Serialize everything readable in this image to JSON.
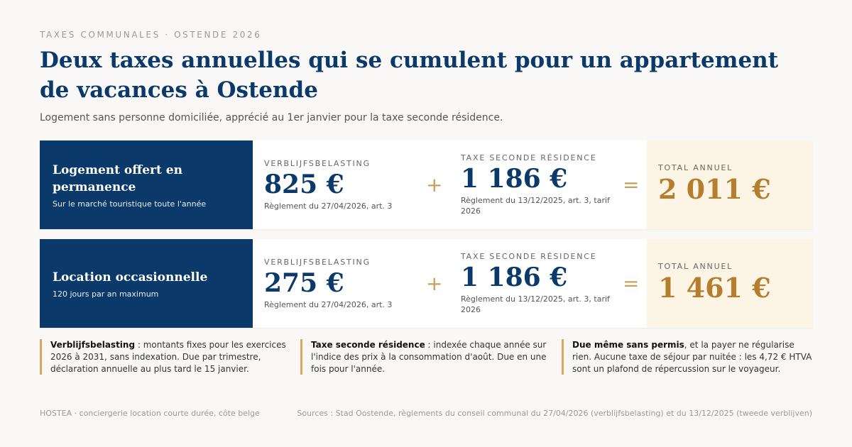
{
  "header": {
    "eyebrow": "TAXES COMMUNALES · OSTENDE 2026",
    "title": "Deux taxes annuelles qui se cumulent pour un appartement de vacances à Ostende",
    "subtitle": "Logement sans personne domiciliée, apprécié au 1er janvier pour la taxe seconde résidence."
  },
  "rows": [
    {
      "name": "Logement offert en permanence",
      "desc": "Sur le marché touristique toute l'année",
      "tax1_label": "VERBLIJFSBELASTING",
      "tax1_amount": "825 €",
      "tax1_ref": "Règlement du 27/04/2026, art. 3",
      "plus": "+",
      "tax2_label": "TAXE SECONDE RÉSIDENCE",
      "tax2_amount": "1 186 €",
      "tax2_ref": "Règlement du 13/12/2025, art. 3, tarif 2026",
      "equals": "=",
      "total_label": "TOTAL ANNUEL",
      "total_amount": "2 011 €"
    },
    {
      "name": "Location occasionnelle",
      "desc": "120 jours par an maximum",
      "tax1_label": "VERBLIJFSBELASTING",
      "tax1_amount": "275 €",
      "tax1_ref": "Règlement du 27/04/2026, art. 3",
      "plus": "+",
      "tax2_label": "TAXE SECONDE RÉSIDENCE",
      "tax2_amount": "1 186 €",
      "tax2_ref": "Règlement du 13/12/2025, art. 3, tarif 2026",
      "equals": "=",
      "total_label": "TOTAL ANNUEL",
      "total_amount": "1 461 €"
    }
  ],
  "notes": [
    {
      "bold": "Verblijfsbelasting",
      "text": " : montants fixes pour les exercices 2026 à 2031, sans indexation. Due par trimestre, déclaration annuelle au plus tard le 15 janvier."
    },
    {
      "bold": "Taxe seconde résidence",
      "text": " : indexée chaque année sur l'indice des prix à la consommation d'août. Due en une fois pour l'année."
    },
    {
      "bold": "Due même sans permis",
      "text": ", et la payer ne régularise rien. Aucune taxe de séjour par nuitée : les 4,72 € HTVA sont un plafond de répercussion sur le voyageur."
    }
  ],
  "footer": {
    "left": "HOSTEA · conciergerie location courte durée, côte belge",
    "right": "Sources : Stad Oostende, règlements du conseil communal du 27/04/2026 (verblijfsbelasting) et du 13/12/2025 (tweede verblijven)"
  },
  "colors": {
    "navy": "#0b3a6a",
    "gold": "#b57d2e",
    "accent": "#d9a860",
    "total_bg": "#fcf5e6"
  }
}
